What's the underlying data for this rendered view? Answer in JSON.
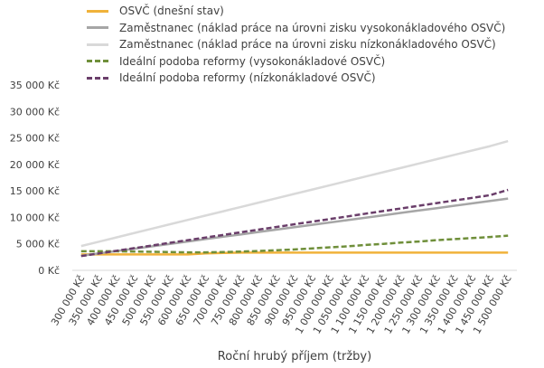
{
  "chart_data": {
    "type": "line",
    "xlabel": "Roční hrubý příjem (tržby)",
    "ylabel": "",
    "ylim": [
      0,
      35000
    ],
    "yticks": [
      "0 Kč",
      "5 000 Kč",
      "10 000 Kč",
      "15 000 Kč",
      "20 000 Kč",
      "25 000 Kč",
      "30 000 Kč",
      "35 000 Kč"
    ],
    "x": [
      "300 000 Kč",
      "350 000 Kč",
      "400 000 Kč",
      "450 000 Kč",
      "500 000 Kč",
      "550 000 Kč",
      "600 000 Kč",
      "650 000 Kč",
      "700 000 Kč",
      "750 000 Kč",
      "800 000 Kč",
      "850 000 Kč",
      "900 000 Kč",
      "950 000 Kč",
      "1 000 000 Kč",
      "1 050 000 Kč",
      "1 100 000 Kč",
      "1 150 000 Kč",
      "1 200 000 Kč",
      "1 250 000 Kč",
      "1 300 000 Kč",
      "1 350 000 Kč",
      "1 400 000 Kč",
      "1 450 000 Kč",
      "1 500 000 Kč"
    ],
    "grid": false,
    "legend_position": "top",
    "series": [
      {
        "name": "OSVČ (dnešní stav)",
        "color": "#f0b23a",
        "dash": "solid",
        "values": [
          3000,
          3000,
          3000,
          3000,
          3000,
          3000,
          3000,
          3200,
          3300,
          3350,
          3350,
          3350,
          3350,
          3350,
          3350,
          3350,
          3350,
          3350,
          3350,
          3350,
          3350,
          3350,
          3350,
          3350,
          3350
        ]
      },
      {
        "name": "Zaměstnanec (náklad práce na úrovni zisku vysokonákladového OSVČ)",
        "color": "#a6a6a6",
        "dash": "solid",
        "values": [
          2750,
          3200,
          3650,
          4100,
          4550,
          5000,
          5450,
          5900,
          6350,
          6800,
          7250,
          7700,
          8150,
          8600,
          9050,
          9500,
          9950,
          10400,
          10850,
          11300,
          11750,
          12200,
          12650,
          13100,
          13550
        ]
      },
      {
        "name": "Zaměstnanec (náklad práce na úrovni zisku nízkonákladového OSVČ)",
        "color": "#d9d9d9",
        "dash": "solid",
        "values": [
          4600,
          5420,
          6240,
          7060,
          7880,
          8700,
          9520,
          10340,
          11160,
          11980,
          12800,
          13620,
          14440,
          15260,
          16080,
          16900,
          17720,
          18540,
          19360,
          20180,
          21000,
          21820,
          22640,
          23460,
          24400
        ]
      },
      {
        "name": "Ideální podoba reformy (vysokonákladové OSVČ)",
        "color": "#6f8f3a",
        "dash": "dash",
        "values": [
          3600,
          3600,
          3600,
          3550,
          3500,
          3450,
          3400,
          3400,
          3450,
          3550,
          3650,
          3800,
          3950,
          4150,
          4350,
          4550,
          4800,
          5000,
          5250,
          5450,
          5700,
          5900,
          6100,
          6300,
          6550
        ]
      },
      {
        "name": "Ideální podoba reformy (nízkonákladové OSVČ)",
        "color": "#6a3e6a",
        "dash": "dash",
        "values": [
          2700,
          3200,
          3700,
          4200,
          4700,
          5200,
          5700,
          6200,
          6700,
          7200,
          7700,
          8200,
          8700,
          9200,
          9700,
          10200,
          10700,
          11200,
          11700,
          12200,
          12700,
          13200,
          13700,
          14200,
          15200
        ]
      }
    ]
  }
}
